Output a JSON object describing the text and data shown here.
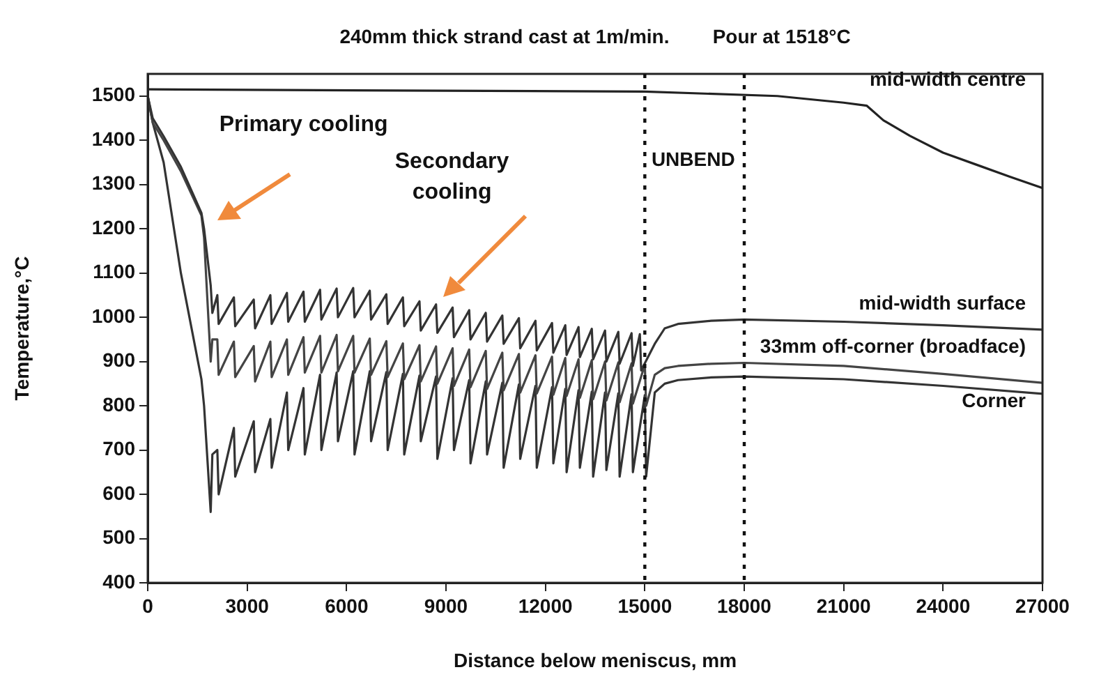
{
  "chart_data": {
    "type": "line",
    "title": "240mm thick strand cast at 1m/min.        Pour at 1518°C",
    "xlabel": "Distance below meniscus, mm",
    "ylabel": "Temperature,°C",
    "xlim": [
      0,
      27000
    ],
    "xticks": [
      0,
      3000,
      6000,
      9000,
      12000,
      15000,
      18000,
      21000,
      24000,
      27000
    ],
    "ylim": [
      400,
      1550
    ],
    "yticks": [
      400,
      500,
      600,
      700,
      800,
      900,
      1000,
      1100,
      1200,
      1300,
      1400,
      1500
    ],
    "grid": false,
    "legend": false,
    "marker": "none",
    "line_style": "solid",
    "ref_lines": [
      {
        "axis": "x",
        "value": 15000,
        "line_style": "dotted",
        "color": "#111111"
      },
      {
        "axis": "x",
        "value": 18000,
        "line_style": "dotted",
        "color": "#111111"
      }
    ],
    "annotations": [
      "UNBEND",
      "Primary cooling",
      "Secondary cooling"
    ],
    "series": [
      {
        "name": "mid-width centre",
        "color": "#222222",
        "x": [
          0,
          15000,
          19000,
          21000,
          21700,
          22200,
          23000,
          24000,
          25000,
          26000,
          27000
        ],
        "values": [
          1515,
          1510,
          1500,
          1485,
          1478,
          1445,
          1410,
          1372,
          1345,
          1318,
          1292
        ]
      },
      {
        "name": "mid-width surface",
        "color": "#333333",
        "x": [
          0,
          150,
          480,
          1000,
          1620,
          1700,
          1900,
          1950,
          2100,
          2140,
          2600,
          2640,
          3200,
          3240,
          3700,
          3740,
          4200,
          4240,
          4700,
          4740,
          5200,
          5240,
          5700,
          5740,
          6200,
          6240,
          6700,
          6740,
          7200,
          7240,
          7700,
          7740,
          8200,
          8240,
          8700,
          8740,
          9200,
          9240,
          9700,
          9740,
          10200,
          10240,
          10700,
          10740,
          11200,
          11240,
          11700,
          11740,
          12200,
          12240,
          12600,
          12640,
          13000,
          13040,
          13400,
          13440,
          13800,
          13840,
          14200,
          14240,
          14600,
          14640,
          14850,
          14890,
          15300,
          15600,
          16000,
          17000,
          18000,
          21000,
          24000,
          27000
        ],
        "values": [
          1500,
          1450,
          1409,
          1340,
          1236,
          1200,
          1072,
          1010,
          1050,
          985,
          1045,
          980,
          1040,
          975,
          1050,
          985,
          1055,
          990,
          1058,
          990,
          1062,
          995,
          1065,
          1000,
          1066,
          1000,
          1060,
          995,
          1052,
          985,
          1045,
          980,
          1036,
          970,
          1029,
          965,
          1022,
          955,
          1016,
          950,
          1010,
          945,
          1004,
          940,
          998,
          930,
          992,
          925,
          987,
          920,
          982,
          915,
          978,
          910,
          974,
          905,
          970,
          900,
          967,
          895,
          964,
          890,
          962,
          880,
          940,
          975,
          985,
          992,
          995,
          990,
          982,
          972
        ]
      },
      {
        "name": "33mm off-corner (broadface)",
        "color": "#444444",
        "x": [
          0,
          150,
          480,
          1000,
          1620,
          1700,
          1900,
          1950,
          2100,
          2140,
          2600,
          2640,
          3200,
          3240,
          3700,
          3740,
          4200,
          4240,
          4700,
          4740,
          5200,
          5240,
          5700,
          5740,
          6200,
          6240,
          6700,
          6740,
          7200,
          7240,
          7700,
          7740,
          8200,
          8240,
          8700,
          8740,
          9200,
          9240,
          9700,
          9740,
          10200,
          10240,
          10700,
          10740,
          11200,
          11240,
          11700,
          11740,
          12200,
          12240,
          12600,
          12640,
          13000,
          13040,
          13400,
          13440,
          13800,
          13840,
          14200,
          14240,
          14600,
          14640,
          15000,
          15040,
          15300,
          15600,
          16000,
          17000,
          18000,
          21000,
          24000,
          27000
        ],
        "values": [
          1500,
          1440,
          1400,
          1330,
          1230,
          1180,
          900,
          950,
          950,
          870,
          945,
          865,
          935,
          855,
          945,
          865,
          950,
          870,
          955,
          875,
          958,
          875,
          960,
          878,
          958,
          875,
          952,
          870,
          946,
          865,
          941,
          860,
          937,
          855,
          934,
          850,
          930,
          845,
          927,
          842,
          924,
          838,
          920,
          835,
          917,
          830,
          914,
          828,
          911,
          825,
          908,
          822,
          905,
          818,
          903,
          815,
          900,
          812,
          898,
          808,
          896,
          805,
          893,
          800,
          870,
          885,
          890,
          895,
          897,
          890,
          872,
          852
        ]
      },
      {
        "name": "Corner",
        "color": "#333333",
        "x": [
          0,
          150,
          480,
          1000,
          1620,
          1700,
          1900,
          1950,
          2100,
          2140,
          2600,
          2640,
          3200,
          3240,
          3700,
          3740,
          4200,
          4240,
          4700,
          4740,
          5200,
          5240,
          5700,
          5740,
          6200,
          6240,
          6700,
          6740,
          7200,
          7240,
          7700,
          7740,
          8200,
          8240,
          8700,
          8740,
          9200,
          9240,
          9700,
          9740,
          10200,
          10240,
          10700,
          10740,
          11200,
          11240,
          11700,
          11740,
          12200,
          12240,
          12600,
          12640,
          13000,
          13040,
          13400,
          13440,
          13800,
          13840,
          14200,
          14240,
          14600,
          14640,
          15000,
          15040,
          15300,
          15600,
          16000,
          17000,
          18000,
          21000,
          24000,
          27000
        ],
        "values": [
          1500,
          1440,
          1350,
          1100,
          860,
          800,
          560,
          690,
          700,
          600,
          750,
          640,
          765,
          650,
          770,
          660,
          830,
          700,
          840,
          690,
          870,
          700,
          875,
          720,
          878,
          690,
          878,
          720,
          876,
          700,
          872,
          690,
          868,
          720,
          866,
          680,
          862,
          700,
          858,
          670,
          855,
          690,
          852,
          660,
          848,
          680,
          845,
          660,
          842,
          670,
          838,
          650,
          835,
          660,
          832,
          640,
          830,
          655,
          828,
          640,
          826,
          650,
          824,
          640,
          830,
          850,
          858,
          864,
          866,
          860,
          845,
          827
        ]
      }
    ]
  }
}
